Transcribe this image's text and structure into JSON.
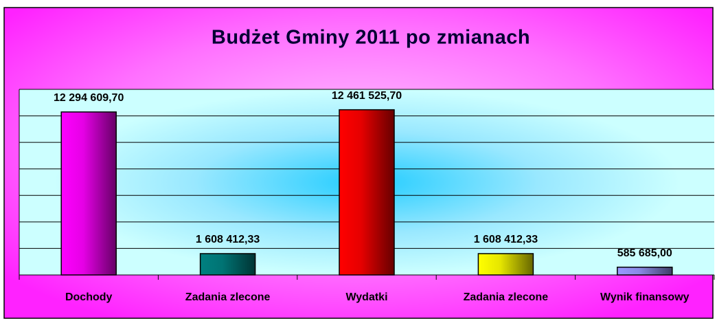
{
  "chart_data": {
    "type": "bar",
    "title": "Budżet Gminy 2011 po zmianach",
    "categories": [
      "Dochody",
      "Zadania zlecone",
      "Wydatki",
      "Zadania zlecone",
      "Wynik finansowy"
    ],
    "values": [
      12294609.7,
      1608412.33,
      12461525.7,
      1608412.33,
      585685.0
    ],
    "value_labels": [
      "12 294 609,70",
      "1 608 412,33",
      "12 461 525,70",
      "1 608 412,33",
      "585 685,00"
    ],
    "colors": [
      "#ff00ff",
      "#008080",
      "#ff0000",
      "#ffff00",
      "#9999ff"
    ],
    "ylim": [
      0,
      14000000
    ],
    "yticks": [
      0,
      2000000,
      4000000,
      6000000,
      8000000,
      10000000,
      12000000,
      14000000
    ],
    "grid": true
  }
}
